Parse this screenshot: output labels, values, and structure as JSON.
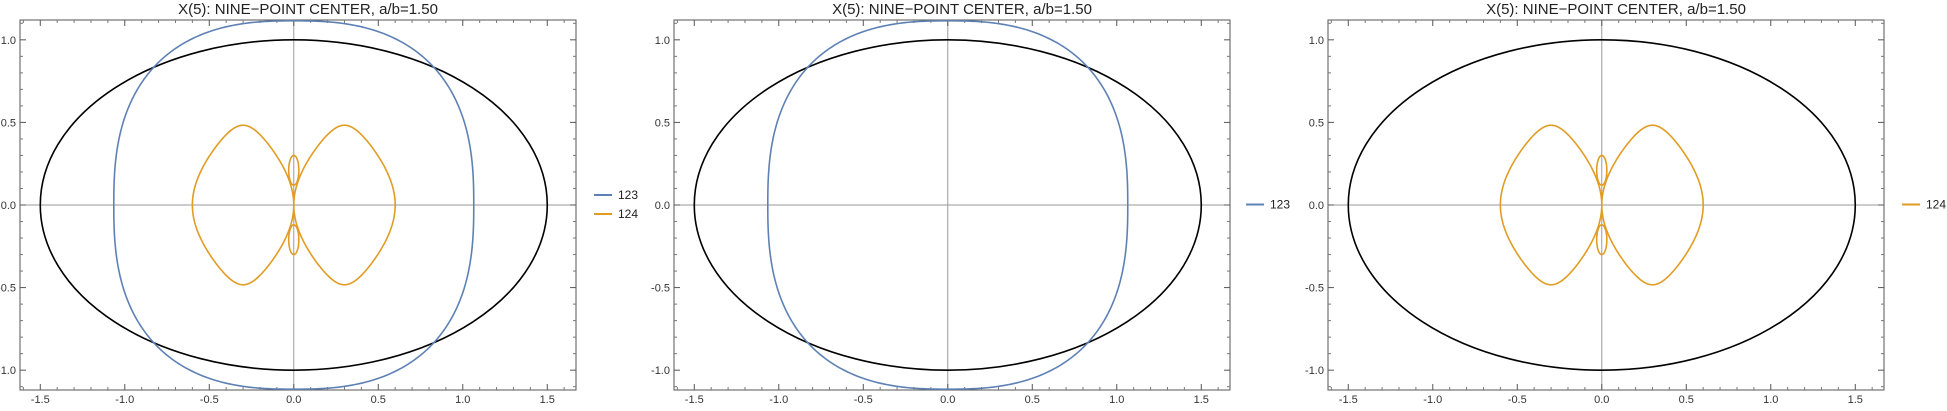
{
  "chart_data": [
    {
      "type": "line",
      "title": "X(5): NINE−POINT CENTER, a/b=1.50",
      "xlabel": "",
      "ylabel": "",
      "xlim": [
        -1.62,
        1.67
      ],
      "ylim": [
        -1.12,
        1.12
      ],
      "xticks": [
        -1.5,
        -1.0,
        -0.5,
        0.0,
        0.5,
        1.0,
        1.5
      ],
      "yticks": [
        -1.0,
        -0.5,
        0.0,
        0.5,
        1.0
      ],
      "xtick_labels": [
        "-1.5",
        "-1.0",
        "-0.5",
        "0.0",
        "0.5",
        "1.0",
        "1.5"
      ],
      "ytick_labels": [
        "-1.0",
        "-0.5",
        "0.0",
        "0.5",
        "1.0"
      ],
      "grid": false,
      "axes_lines": "origin",
      "legend_position": "right",
      "ellipse": {
        "a": 1.5,
        "b": 1.0,
        "color": "#000000"
      },
      "series": [
        {
          "name": "123",
          "color": "#5E81B5",
          "visible": true
        },
        {
          "name": "124",
          "color": "#E19C24",
          "visible": true
        }
      ]
    },
    {
      "type": "line",
      "title": "X(5): NINE−POINT CENTER, a/b=1.50",
      "xlabel": "",
      "ylabel": "",
      "xlim": [
        -1.62,
        1.67
      ],
      "ylim": [
        -1.12,
        1.12
      ],
      "xticks": [
        -1.5,
        -1.0,
        -0.5,
        0.0,
        0.5,
        1.0,
        1.5
      ],
      "yticks": [
        -1.0,
        -0.5,
        0.0,
        0.5,
        1.0
      ],
      "xtick_labels": [
        "-1.5",
        "-1.0",
        "-0.5",
        "0.0",
        "0.5",
        "1.0",
        "1.5"
      ],
      "ytick_labels": [
        "-1.0",
        "-0.5",
        "0.0",
        "0.5",
        "1.0"
      ],
      "grid": false,
      "axes_lines": "origin",
      "legend_position": "right",
      "ellipse": {
        "a": 1.5,
        "b": 1.0,
        "color": "#000000"
      },
      "series": [
        {
          "name": "123",
          "color": "#5E81B5",
          "visible": true
        }
      ]
    },
    {
      "type": "line",
      "title": "X(5): NINE−POINT CENTER, a/b=1.50",
      "xlabel": "",
      "ylabel": "",
      "xlim": [
        -1.62,
        1.67
      ],
      "ylim": [
        -1.12,
        1.12
      ],
      "xticks": [
        -1.5,
        -1.0,
        -0.5,
        0.0,
        0.5,
        1.0,
        1.5
      ],
      "yticks": [
        -1.0,
        -0.5,
        0.0,
        0.5,
        1.0
      ],
      "xtick_labels": [
        "-1.5",
        "-1.0",
        "-0.5",
        "0.0",
        "0.5",
        "1.0",
        "1.5"
      ],
      "ytick_labels": [
        "-1.0",
        "-0.5",
        "0.0",
        "0.5",
        "1.0"
      ],
      "grid": false,
      "axes_lines": "origin",
      "legend_position": "right",
      "ellipse": {
        "a": 1.5,
        "b": 1.0,
        "color": "#000000"
      },
      "series": [
        {
          "name": "124",
          "color": "#E19C24",
          "visible": true
        }
      ]
    }
  ]
}
